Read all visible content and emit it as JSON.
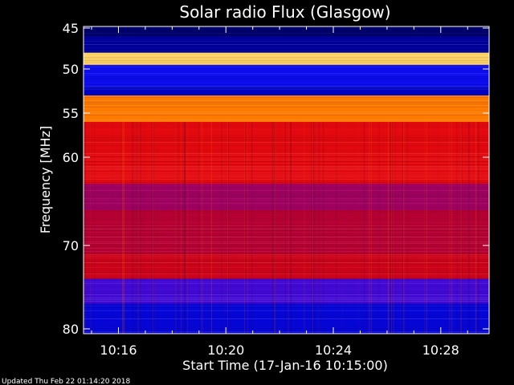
{
  "chart_data": {
    "type": "heatmap",
    "title": "Solar radio Flux (Glasgow)",
    "xlabel": "Start Time (17-Jan-16 10:15:00)",
    "ylabel": "Frequency [MHz]",
    "x_tick_labels": [
      "10:16",
      "10:20",
      "10:24",
      "10:28"
    ],
    "x_tick_minutes": [
      1,
      5,
      9,
      13
    ],
    "xlim_minutes": [
      -0.3,
      14.8
    ],
    "y_tick_labels": [
      "45",
      "50",
      "55",
      "60",
      "70",
      "80"
    ],
    "y_tick_values": [
      45,
      50,
      55,
      60,
      70,
      80
    ],
    "ylim": [
      44.5,
      80.5
    ],
    "colormap": [
      "#000040",
      "#0000c0",
      "#1010ff",
      "#8000a0",
      "#c00020",
      "#ff1000",
      "#ff8000",
      "#ffffa0"
    ],
    "frequency_bands": [
      {
        "from": 44.5,
        "to": 46,
        "level": 0.05
      },
      {
        "from": 46,
        "to": 48,
        "level": 0.1
      },
      {
        "from": 48,
        "to": 49.5,
        "level": 0.95
      },
      {
        "from": 49.5,
        "to": 52,
        "level": 0.25
      },
      {
        "from": 52,
        "to": 53,
        "level": 0.15
      },
      {
        "from": 53,
        "to": 56,
        "level": 0.85
      },
      {
        "from": 56,
        "to": 63,
        "level": 0.65
      },
      {
        "from": 63,
        "to": 66,
        "level": 0.5
      },
      {
        "from": 66,
        "to": 71,
        "level": 0.55
      },
      {
        "from": 71,
        "to": 74,
        "level": 0.6
      },
      {
        "from": 74,
        "to": 77,
        "level": 0.35
      },
      {
        "from": 77,
        "to": 80.5,
        "level": 0.2
      }
    ]
  },
  "footer": {
    "updated": "Updated Thu Feb 22 01:14:20 2018"
  }
}
